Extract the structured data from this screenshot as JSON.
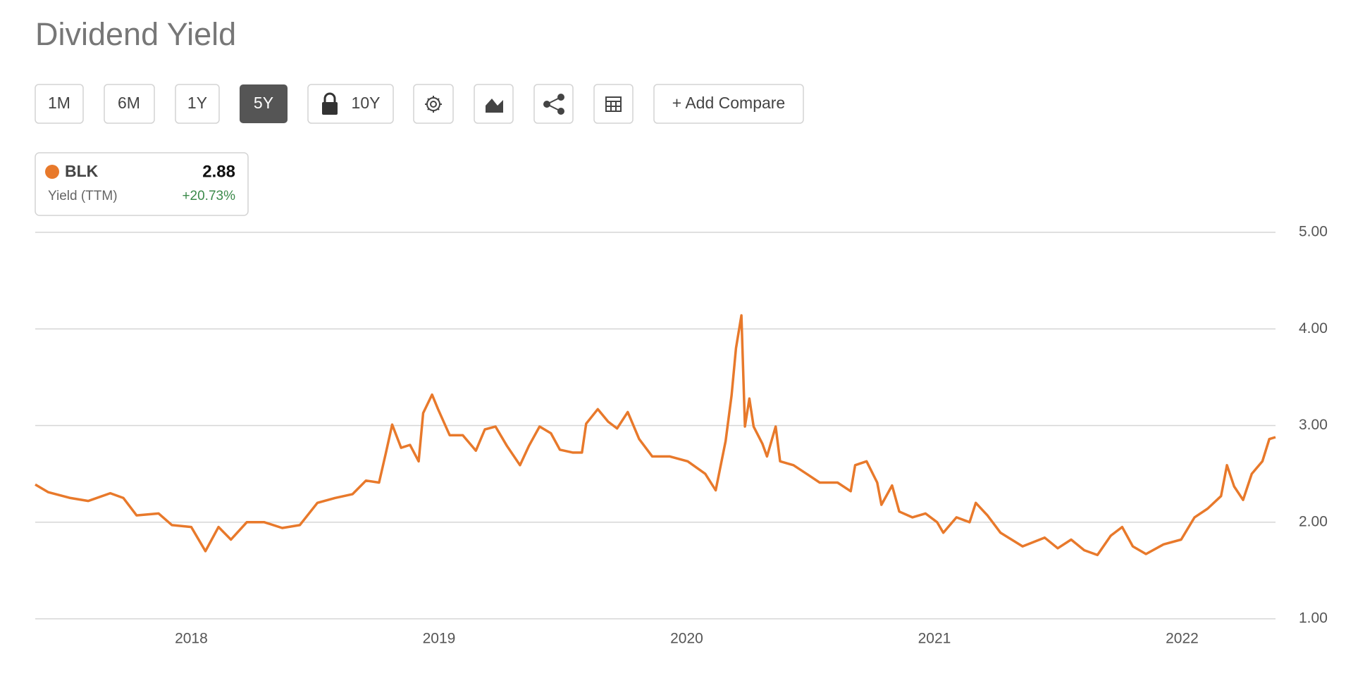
{
  "toolbar": {
    "buttons": [
      "1M",
      "6M",
      "1Y",
      "5Y",
      "10Y",
      "+ Add Compare"
    ]
  },
  "legend_box": {
    "ticker": "BLK",
    "latest": "2.88",
    "metric": "Yield (TTM)",
    "change": "+20.73%"
  },
  "chart_data": {
    "type": "line",
    "title": "Dividend Yield",
    "x": [
      2017.37,
      2017.423,
      2017.512,
      2017.584,
      2017.673,
      2017.726,
      2017.779,
      2017.868,
      2017.922,
      2018.0,
      2018.057,
      2018.11,
      2018.16,
      2018.224,
      2018.295,
      2018.367,
      2018.438,
      2018.509,
      2018.58,
      2018.651,
      2018.705,
      2018.758,
      2018.786,
      2018.811,
      2018.847,
      2018.883,
      2018.918,
      2018.936,
      2018.972,
      2018.996,
      2019.043,
      2019.096,
      2019.149,
      2019.185,
      2019.228,
      2019.274,
      2019.327,
      2019.363,
      2019.406,
      2019.452,
      2019.488,
      2019.541,
      2019.577,
      2019.594,
      2019.641,
      2019.683,
      2019.719,
      2019.762,
      2019.808,
      2019.861,
      2019.932,
      2020.004,
      2020.075,
      2020.117,
      2020.157,
      2020.181,
      2020.199,
      2020.221,
      2020.235,
      2020.253,
      2020.27,
      2020.306,
      2020.324,
      2020.359,
      2020.377,
      2020.431,
      2020.484,
      2020.537,
      2020.609,
      2020.662,
      2020.68,
      2020.726,
      2020.769,
      2020.786,
      2020.829,
      2020.858,
      2020.911,
      2020.964,
      2021.011,
      2021.036,
      2021.089,
      2021.142,
      2021.167,
      2021.214,
      2021.267,
      2021.356,
      2021.445,
      2021.498,
      2021.552,
      2021.605,
      2021.658,
      2021.712,
      2021.758,
      2021.801,
      2021.854,
      2021.925,
      2021.996,
      2022.05,
      2022.103,
      2022.157,
      2022.181,
      2022.21,
      2022.246,
      2022.281,
      2022.324,
      2022.352,
      2022.377
    ],
    "series": [
      {
        "name": "BLK",
        "color": "#e8792b",
        "values": [
          2.39,
          2.31,
          2.25,
          2.22,
          2.3,
          2.25,
          2.07,
          2.09,
          1.97,
          1.95,
          1.7,
          1.95,
          1.82,
          2.0,
          2.0,
          1.94,
          1.97,
          2.2,
          2.25,
          2.29,
          2.43,
          2.41,
          2.72,
          3.01,
          2.77,
          2.8,
          2.63,
          3.13,
          3.32,
          3.17,
          2.9,
          2.9,
          2.74,
          2.96,
          2.99,
          2.79,
          2.59,
          2.79,
          2.99,
          2.92,
          2.75,
          2.72,
          2.72,
          3.02,
          3.17,
          3.04,
          2.97,
          3.14,
          2.86,
          2.68,
          2.68,
          2.63,
          2.5,
          2.33,
          2.84,
          3.31,
          3.8,
          4.14,
          2.99,
          3.28,
          2.99,
          2.81,
          2.68,
          2.99,
          2.63,
          2.59,
          2.5,
          2.41,
          2.41,
          2.32,
          2.59,
          2.63,
          2.41,
          2.18,
          2.38,
          2.11,
          2.05,
          2.09,
          2.0,
          1.89,
          2.05,
          2.0,
          2.2,
          2.07,
          1.89,
          1.75,
          1.84,
          1.73,
          1.82,
          1.71,
          1.66,
          1.86,
          1.95,
          1.75,
          1.67,
          1.77,
          1.82,
          2.05,
          2.14,
          2.27,
          2.59,
          2.37,
          2.23,
          2.5,
          2.63,
          2.86,
          2.88
        ]
      }
    ],
    "xlim": [
      2017.37,
      2022.377
    ],
    "xticks": [
      2018,
      2019,
      2020,
      2021,
      2022
    ],
    "ylim": [
      1,
      5
    ],
    "yticks": [
      {
        "value": 1,
        "label": "1.00"
      },
      {
        "value": 2,
        "label": "2.00"
      },
      {
        "value": 3,
        "label": "3.00"
      },
      {
        "value": 4,
        "label": "4.00"
      },
      {
        "value": 5,
        "label": "5.00"
      }
    ],
    "grid": true
  }
}
